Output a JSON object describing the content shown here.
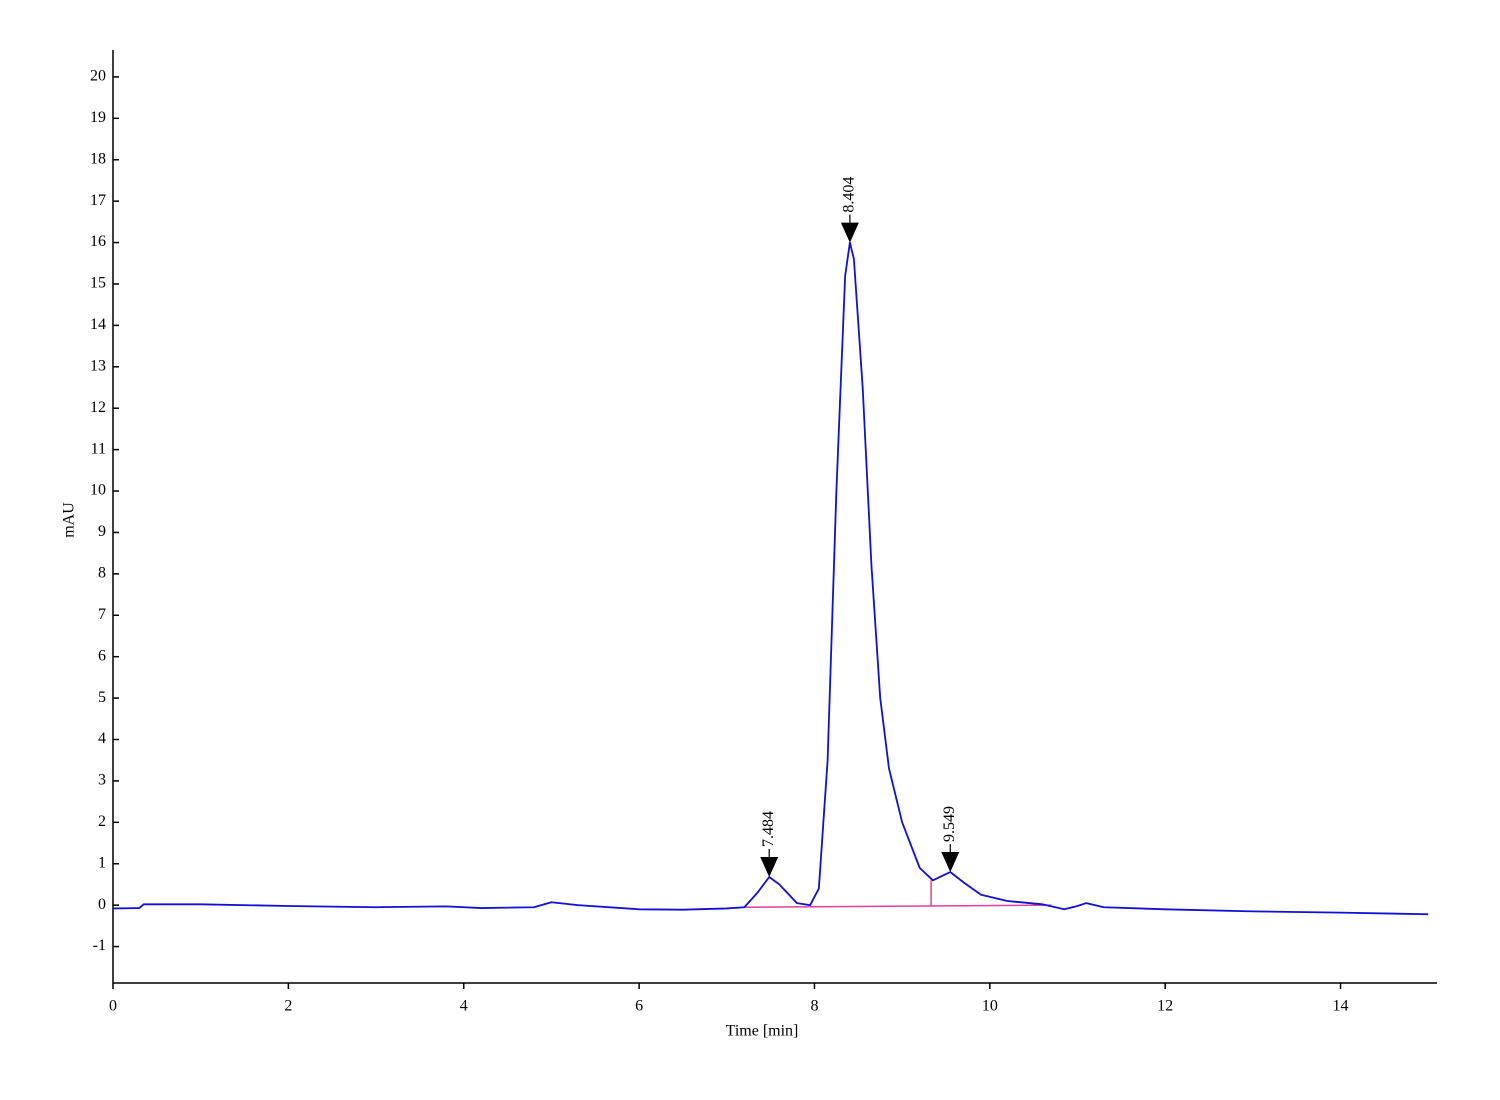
{
  "chart_data": {
    "type": "line",
    "xlabel": "Time [min]",
    "ylabel": "mAU",
    "color": "#1010d8",
    "x": [
      0,
      0.3,
      0.35,
      1,
      2,
      3,
      3.8,
      4.2,
      4.8,
      5.0,
      5.3,
      6.0,
      6.5,
      7.0,
      7.2,
      7.35,
      7.484,
      7.6,
      7.8,
      7.95,
      8.05,
      8.15,
      8.25,
      8.35,
      8.404,
      8.45,
      8.55,
      8.65,
      8.75,
      8.85,
      9.0,
      9.2,
      9.35,
      9.549,
      9.7,
      9.9,
      10.2,
      10.6,
      10.85,
      11.0,
      11.1,
      11.3,
      12,
      13,
      14,
      15
    ],
    "values": [
      -0.08,
      -0.07,
      0.02,
      0.02,
      -0.02,
      -0.05,
      -0.03,
      -0.07,
      -0.05,
      0.07,
      0.0,
      -0.1,
      -0.11,
      -0.08,
      -0.05,
      0.3,
      0.68,
      0.5,
      0.05,
      0.0,
      0.4,
      3.5,
      10,
      15.2,
      16.0,
      15.6,
      12.5,
      8.2,
      5.0,
      3.3,
      2.0,
      0.9,
      0.6,
      0.8,
      0.55,
      0.25,
      0.1,
      0.02,
      -0.1,
      -0.02,
      0.05,
      -0.05,
      -0.1,
      -0.15,
      -0.18,
      -0.22
    ],
    "baseline": {
      "color": "#e040a0",
      "x": [
        7.2,
        10.7
      ],
      "values": [
        -0.05,
        0.0
      ]
    },
    "drop_lines": [
      {
        "x": 9.33,
        "values": [
          -0.04,
          0.6
        ]
      }
    ],
    "peaks": [
      {
        "x": 7.484,
        "value": 0.68
      },
      {
        "x": 8.404,
        "value": 16.0
      },
      {
        "x": 9.549,
        "value": 0.8
      }
    ],
    "xlim": [
      0,
      15.1
    ],
    "ylim": [
      -1.88,
      20.65
    ],
    "xticks": [
      0,
      2,
      4,
      6,
      8,
      10,
      12,
      14
    ],
    "yticks": [
      -1,
      0,
      1,
      2,
      3,
      4,
      5,
      6,
      7,
      8,
      9,
      10,
      11,
      12,
      13,
      14,
      15,
      16,
      17,
      18,
      19,
      20
    ]
  }
}
